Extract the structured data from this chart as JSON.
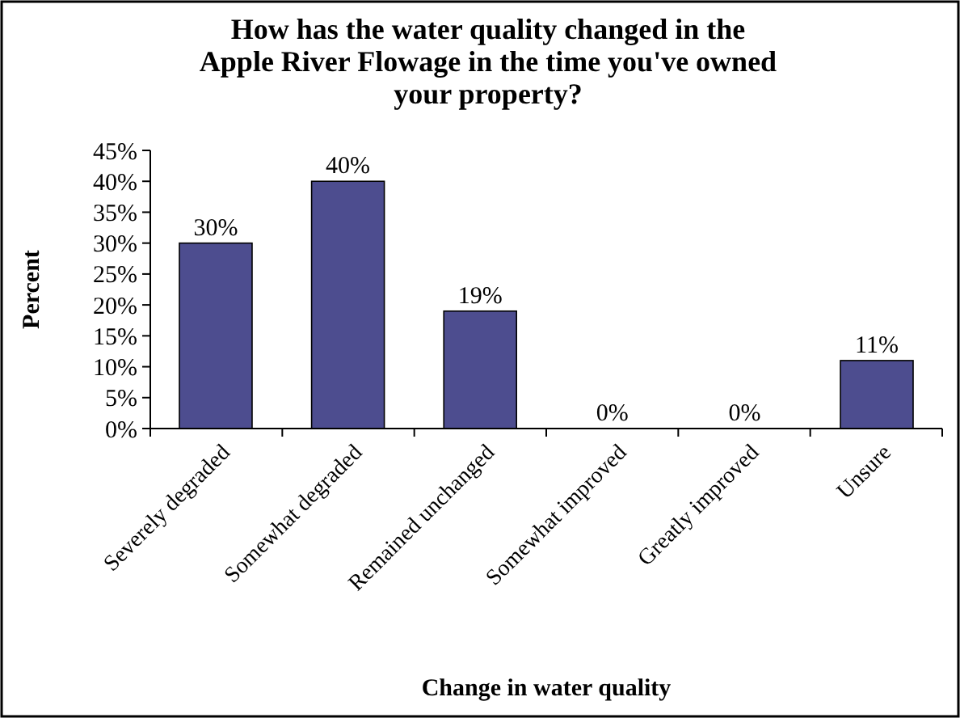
{
  "chart_data": {
    "type": "bar",
    "title": "How has the water quality changed in the Apple River Flowage in the time you've owned your property?",
    "xlabel": "Change in water quality",
    "ylabel": "Percent",
    "categories": [
      "Severely degraded",
      "Somewhat degraded",
      "Remained unchanged",
      "Somewhat improved",
      "Greatly improved",
      "Unsure"
    ],
    "values": [
      30,
      40,
      19,
      0,
      0,
      11
    ],
    "value_labels": [
      "30%",
      "40%",
      "19%",
      "0%",
      "0%",
      "11%"
    ],
    "color": "#4d4d8f",
    "ylim": [
      0,
      45
    ],
    "yticks": [
      {
        "value": 0,
        "label": "0%"
      },
      {
        "value": 5,
        "label": "5%"
      },
      {
        "value": 10,
        "label": "10%"
      },
      {
        "value": 15,
        "label": "15%"
      },
      {
        "value": 20,
        "label": "20%"
      },
      {
        "value": 25,
        "label": "25%"
      },
      {
        "value": 30,
        "label": "30%"
      },
      {
        "value": 35,
        "label": "35%"
      },
      {
        "value": 40,
        "label": "40%"
      },
      {
        "value": 45,
        "label": "45%"
      }
    ]
  }
}
